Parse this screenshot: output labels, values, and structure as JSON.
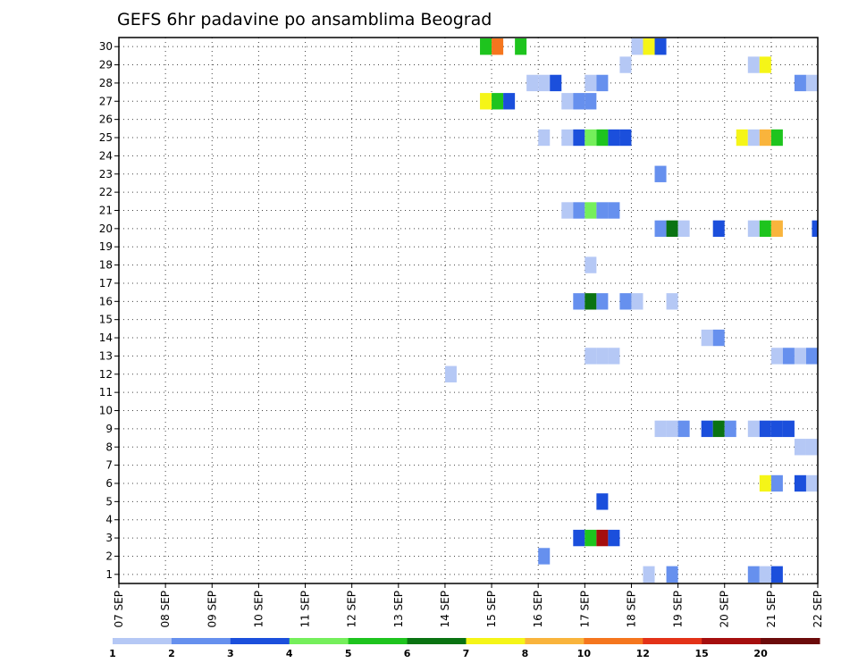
{
  "chart_data": {
    "type": "heatmap",
    "title": "GEFS 6hr padavine po ansamblima Beograd",
    "x_tick_labels": [
      "07 SEP",
      "08 SEP",
      "09 SEP",
      "10 SEP",
      "11 SEP",
      "12 SEP",
      "13 SEP",
      "14 SEP",
      "15 SEP",
      "16 SEP",
      "17 SEP",
      "18 SEP",
      "19 SEP",
      "20 SEP",
      "21 SEP",
      "22 SEP"
    ],
    "y_tick_labels": [
      "1",
      "2",
      "3",
      "4",
      "5",
      "6",
      "7",
      "8",
      "9",
      "10",
      "11",
      "12",
      "13",
      "14",
      "15",
      "16",
      "17",
      "18",
      "19",
      "20",
      "21",
      "22",
      "23",
      "24",
      "25",
      "26",
      "27",
      "28",
      "29",
      "30"
    ],
    "xlim": [
      0,
      60
    ],
    "ylim": [
      0.5,
      30.5
    ],
    "x_unit": "6-hour steps from 07 SEP 00 UTC",
    "grid": true,
    "colorbar": {
      "labels": [
        "1",
        "2",
        "3",
        "4",
        "5",
        "6",
        "7",
        "8",
        "10",
        "12",
        "15",
        "20"
      ],
      "colors": [
        "#b5c8f5",
        "#6690ee",
        "#1b4fdc",
        "#75ef5b",
        "#1ec41e",
        "#0a7312",
        "#f5f518",
        "#f9b43c",
        "#f5761e",
        "#e33218",
        "#a50e0e",
        "#6b0b0b"
      ]
    },
    "points": [
      {
        "m": 30,
        "x": 31.5,
        "c": 5
      },
      {
        "m": 30,
        "x": 32.5,
        "c": 9
      },
      {
        "m": 30,
        "x": 34.5,
        "c": 5
      },
      {
        "m": 30,
        "x": 44.5,
        "c": 1
      },
      {
        "m": 30,
        "x": 45.5,
        "c": 7
      },
      {
        "m": 30,
        "x": 46.5,
        "c": 3
      },
      {
        "m": 29,
        "x": 43.5,
        "c": 1
      },
      {
        "m": 29,
        "x": 54.5,
        "c": 1
      },
      {
        "m": 29,
        "x": 55.5,
        "c": 7
      },
      {
        "m": 28,
        "x": 35.5,
        "c": 1
      },
      {
        "m": 28,
        "x": 36.5,
        "c": 1
      },
      {
        "m": 28,
        "x": 37.5,
        "c": 3
      },
      {
        "m": 28,
        "x": 40.5,
        "c": 1
      },
      {
        "m": 28,
        "x": 41.5,
        "c": 2
      },
      {
        "m": 28,
        "x": 58.5,
        "c": 2
      },
      {
        "m": 28,
        "x": 59.5,
        "c": 1
      },
      {
        "m": 27,
        "x": 31.5,
        "c": 7
      },
      {
        "m": 27,
        "x": 32.5,
        "c": 5
      },
      {
        "m": 27,
        "x": 33.5,
        "c": 3
      },
      {
        "m": 27,
        "x": 38.5,
        "c": 1
      },
      {
        "m": 27,
        "x": 39.5,
        "c": 2
      },
      {
        "m": 27,
        "x": 40.5,
        "c": 2
      },
      {
        "m": 25,
        "x": 36.5,
        "c": 1
      },
      {
        "m": 25,
        "x": 38.5,
        "c": 1
      },
      {
        "m": 25,
        "x": 39.5,
        "c": 3
      },
      {
        "m": 25,
        "x": 40.5,
        "c": 4
      },
      {
        "m": 25,
        "x": 41.5,
        "c": 5
      },
      {
        "m": 25,
        "x": 42.5,
        "c": 3
      },
      {
        "m": 25,
        "x": 43.5,
        "c": 3
      },
      {
        "m": 25,
        "x": 53.5,
        "c": 7
      },
      {
        "m": 25,
        "x": 54.5,
        "c": 1
      },
      {
        "m": 25,
        "x": 55.5,
        "c": 8
      },
      {
        "m": 25,
        "x": 56.5,
        "c": 5
      },
      {
        "m": 23,
        "x": 46.5,
        "c": 2
      },
      {
        "m": 21,
        "x": 38.5,
        "c": 1
      },
      {
        "m": 21,
        "x": 39.5,
        "c": 2
      },
      {
        "m": 21,
        "x": 40.5,
        "c": 4
      },
      {
        "m": 21,
        "x": 41.5,
        "c": 2
      },
      {
        "m": 21,
        "x": 42.5,
        "c": 2
      },
      {
        "m": 20,
        "x": 46.5,
        "c": 2
      },
      {
        "m": 20,
        "x": 47.5,
        "c": 6
      },
      {
        "m": 20,
        "x": 48.5,
        "c": 1
      },
      {
        "m": 20,
        "x": 51.5,
        "c": 3
      },
      {
        "m": 20,
        "x": 54.5,
        "c": 1
      },
      {
        "m": 20,
        "x": 55.5,
        "c": 5
      },
      {
        "m": 20,
        "x": 56.5,
        "c": 8
      },
      {
        "m": 20,
        "x": 60.0,
        "c": 3
      },
      {
        "m": 18,
        "x": 40.5,
        "c": 1
      },
      {
        "m": 16,
        "x": 39.5,
        "c": 2
      },
      {
        "m": 16,
        "x": 40.5,
        "c": 6
      },
      {
        "m": 16,
        "x": 41.5,
        "c": 2
      },
      {
        "m": 16,
        "x": 43.5,
        "c": 2
      },
      {
        "m": 16,
        "x": 44.5,
        "c": 1
      },
      {
        "m": 16,
        "x": 47.5,
        "c": 1
      },
      {
        "m": 14,
        "x": 50.5,
        "c": 1
      },
      {
        "m": 14,
        "x": 51.5,
        "c": 2
      },
      {
        "m": 13,
        "x": 40.5,
        "c": 1
      },
      {
        "m": 13,
        "x": 41.5,
        "c": 1
      },
      {
        "m": 13,
        "x": 42.5,
        "c": 1
      },
      {
        "m": 13,
        "x": 56.5,
        "c": 1
      },
      {
        "m": 13,
        "x": 57.5,
        "c": 2
      },
      {
        "m": 13,
        "x": 58.5,
        "c": 1
      },
      {
        "m": 13,
        "x": 59.5,
        "c": 2
      },
      {
        "m": 12,
        "x": 28.5,
        "c": 1
      },
      {
        "m": 9,
        "x": 46.5,
        "c": 1
      },
      {
        "m": 9,
        "x": 47.5,
        "c": 1
      },
      {
        "m": 9,
        "x": 48.5,
        "c": 2
      },
      {
        "m": 9,
        "x": 50.5,
        "c": 3
      },
      {
        "m": 9,
        "x": 51.5,
        "c": 6
      },
      {
        "m": 9,
        "x": 52.5,
        "c": 2
      },
      {
        "m": 9,
        "x": 54.5,
        "c": 1
      },
      {
        "m": 9,
        "x": 55.5,
        "c": 3
      },
      {
        "m": 9,
        "x": 56.5,
        "c": 3
      },
      {
        "m": 9,
        "x": 57.5,
        "c": 3
      },
      {
        "m": 8,
        "x": 58.5,
        "c": 1
      },
      {
        "m": 8,
        "x": 59.5,
        "c": 1
      },
      {
        "m": 6,
        "x": 55.5,
        "c": 7
      },
      {
        "m": 6,
        "x": 56.5,
        "c": 2
      },
      {
        "m": 6,
        "x": 58.5,
        "c": 3
      },
      {
        "m": 6,
        "x": 59.5,
        "c": 1
      },
      {
        "m": 5,
        "x": 41.5,
        "c": 3
      },
      {
        "m": 3,
        "x": 39.5,
        "c": 3
      },
      {
        "m": 3,
        "x": 40.5,
        "c": 5
      },
      {
        "m": 3,
        "x": 41.5,
        "c": 11
      },
      {
        "m": 3,
        "x": 42.5,
        "c": 3
      },
      {
        "m": 2,
        "x": 36.5,
        "c": 2
      },
      {
        "m": 1,
        "x": 45.5,
        "c": 1
      },
      {
        "m": 1,
        "x": 47.5,
        "c": 2
      },
      {
        "m": 1,
        "x": 54.5,
        "c": 2
      },
      {
        "m": 1,
        "x": 55.5,
        "c": 1
      },
      {
        "m": 1,
        "x": 56.5,
        "c": 3
      }
    ]
  }
}
